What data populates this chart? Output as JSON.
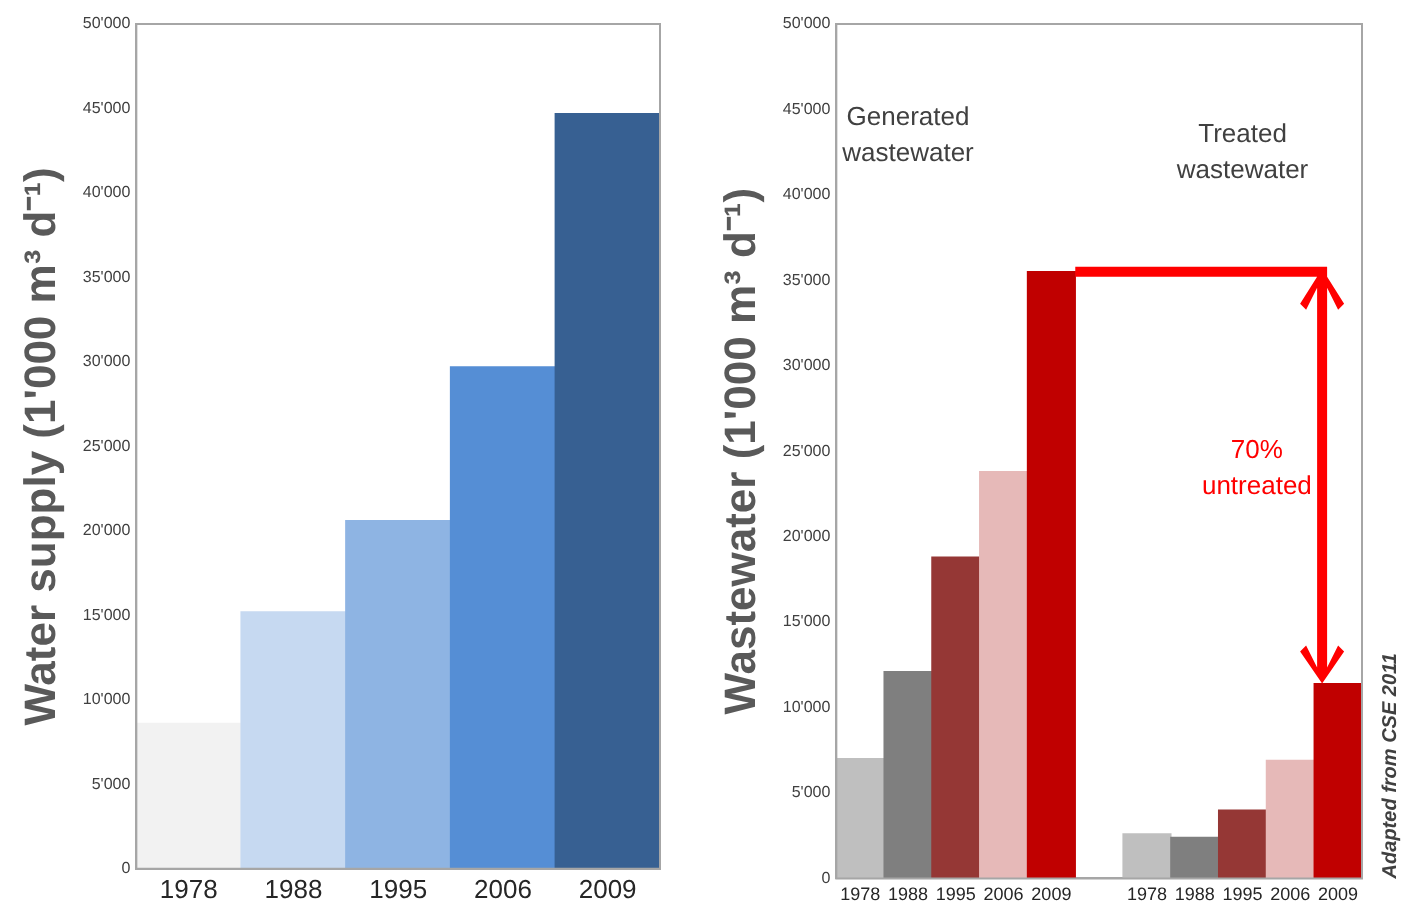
{
  "chart_data": [
    {
      "type": "bar",
      "ylabel": "Water supply (1'000 m³ d⁻¹)",
      "categories": [
        "1978",
        "1988",
        "1995",
        "2006",
        "2009"
      ],
      "values": [
        8600,
        15200,
        20600,
        29700,
        44700
      ],
      "colors": [
        "#f2f2f2",
        "#c6d9f1",
        "#8eb4e3",
        "#558ed5",
        "#376092"
      ],
      "ylim": [
        0,
        50000
      ],
      "yticks": [
        {
          "value": 0,
          "label": "0"
        },
        {
          "value": 5000,
          "label": "5'000"
        },
        {
          "value": 10000,
          "label": "10'000"
        },
        {
          "value": 15000,
          "label": "15'000"
        },
        {
          "value": 20000,
          "label": "20'000"
        },
        {
          "value": 25000,
          "label": "25'000"
        },
        {
          "value": 30000,
          "label": "30'000"
        },
        {
          "value": 35000,
          "label": "35'000"
        },
        {
          "value": 40000,
          "label": "40'000"
        },
        {
          "value": 45000,
          "label": "45'000"
        },
        {
          "value": 50000,
          "label": "50'000"
        }
      ],
      "grid": false,
      "legend": false
    },
    {
      "type": "bar",
      "ylabel": "Wastewater (1'000 m³ d⁻¹)",
      "categories": [
        "1978",
        "1988",
        "1995",
        "2006",
        "2009",
        null,
        "1978",
        "1988",
        "1995",
        "2006",
        "2009"
      ],
      "values": [
        7000,
        12100,
        18800,
        23800,
        35500,
        null,
        2600,
        2400,
        4000,
        6900,
        11400
      ],
      "colors": [
        "#bfbfbf",
        "#7f7f7f",
        "#953735",
        "#e6b9b8",
        "#c00000",
        "#ffffff",
        "#bfbfbf",
        "#7f7f7f",
        "#953735",
        "#e6b9b8",
        "#c00000"
      ],
      "ylim": [
        0,
        50000
      ],
      "yticks": [
        {
          "value": 0,
          "label": "0"
        },
        {
          "value": 5000,
          "label": "5'000"
        },
        {
          "value": 10000,
          "label": "10'000"
        },
        {
          "value": 15000,
          "label": "15'000"
        },
        {
          "value": 20000,
          "label": "20'000"
        },
        {
          "value": 25000,
          "label": "25'000"
        },
        {
          "value": 30000,
          "label": "30'000"
        },
        {
          "value": 35000,
          "label": "35'000"
        },
        {
          "value": 40000,
          "label": "40'000"
        },
        {
          "value": 45000,
          "label": "45'000"
        },
        {
          "value": 50000,
          "label": "50'000"
        }
      ],
      "grid": false,
      "legend": false,
      "annotations": [
        "Generated wastewater",
        "Treated wastewater",
        "70% untreated",
        "Adapted from CSE 2011"
      ]
    }
  ]
}
